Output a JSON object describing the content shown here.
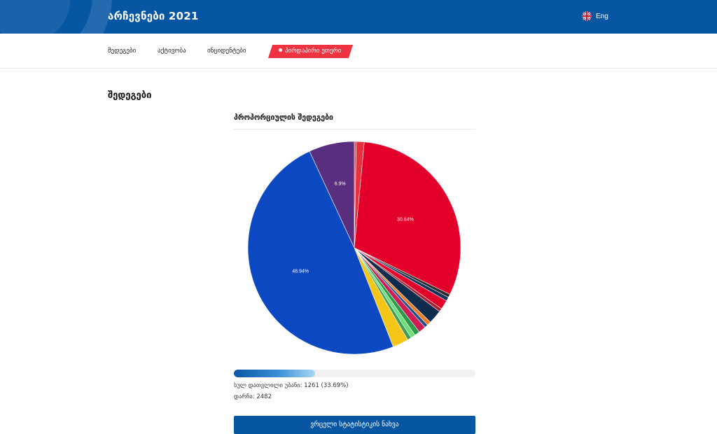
{
  "header": {
    "title": "არჩევნები 2021",
    "lang_label": "Eng",
    "lang_icon": "uk-flag-icon"
  },
  "nav": {
    "items": [
      "შედეგები",
      "აქტივობა",
      "ინციდენტები"
    ],
    "live_label": "პირდაპირი ეთერი"
  },
  "main": {
    "section_title": "შედეგები",
    "chart_title": "პროპორციულის შედეგები",
    "progress_percent": 33.69,
    "processed_text": "სულ დათვლილი უბანი: 1261 (33.69%)",
    "total_text": "დარჩა: 2482",
    "details_button": "ვრცელი სტატისტიკის ნახვა"
  },
  "colors": {
    "brand": "#0756a3",
    "live": "#ef3340"
  },
  "chart_data": {
    "type": "pie",
    "title": "",
    "slices": [
      {
        "value": 0.3,
        "color": "#e63a4a",
        "label": ""
      },
      {
        "value": 1.2,
        "color": "#e5303e",
        "label": ""
      },
      {
        "value": 30.64,
        "color": "#e3002b",
        "label": "30.64%"
      },
      {
        "value": 0.5,
        "color": "#2b2b2b",
        "label": ""
      },
      {
        "value": 0.6,
        "color": "#14345a",
        "label": ""
      },
      {
        "value": 1.4,
        "color": "#e3002b",
        "label": ""
      },
      {
        "value": 0.5,
        "color": "#a51f2f",
        "label": ""
      },
      {
        "value": 2.1,
        "color": "#0f2c4f",
        "label": ""
      },
      {
        "value": 0.6,
        "color": "#f07c1f",
        "label": ""
      },
      {
        "value": 0.5,
        "color": "#1d4e89",
        "label": ""
      },
      {
        "value": 1.1,
        "color": "#cc1d57",
        "label": ""
      },
      {
        "value": 0.8,
        "color": "#2e9a4b",
        "label": ""
      },
      {
        "value": 0.7,
        "color": "#6be07a",
        "label": ""
      },
      {
        "value": 0.6,
        "color": "#3f9f5a",
        "label": ""
      },
      {
        "value": 2.4,
        "color": "#f5c518",
        "label": ""
      },
      {
        "value": 48.94,
        "color": "#0b48c2",
        "label": "48.94%"
      },
      {
        "value": 6.9,
        "color": "#5a2e7e",
        "label": "6.9%"
      }
    ]
  }
}
